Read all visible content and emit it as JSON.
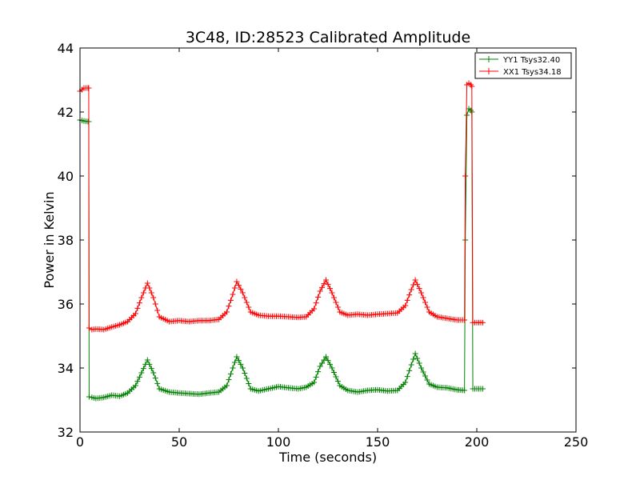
{
  "chart_data": {
    "type": "line",
    "title": "3C48, ID:28523 Calibrated Amplitude",
    "xlabel": "Time (seconds)",
    "ylabel": "Power in Kelvin",
    "xlim": [
      0,
      250
    ],
    "ylim": [
      32,
      44
    ],
    "xticks": [
      "0",
      "50",
      "100",
      "150",
      "200",
      "250"
    ],
    "yticks": [
      "32",
      "34",
      "36",
      "38",
      "40",
      "42",
      "44"
    ],
    "grid": false,
    "legend_position": "top-right",
    "marker": "plus",
    "series": [
      {
        "name": "YY1 Tsys32.40",
        "color": "#008000",
        "points": [
          [
            0,
            41.75
          ],
          [
            2,
            41.72
          ],
          [
            4,
            41.7
          ],
          [
            4.4,
            41.7
          ],
          [
            4.6,
            33.1
          ],
          [
            6,
            33.08
          ],
          [
            8,
            33.05
          ],
          [
            12,
            33.08
          ],
          [
            16,
            33.15
          ],
          [
            20,
            33.12
          ],
          [
            24,
            33.22
          ],
          [
            28,
            33.45
          ],
          [
            31,
            33.85
          ],
          [
            34,
            34.25
          ],
          [
            37,
            33.85
          ],
          [
            40,
            33.35
          ],
          [
            45,
            33.25
          ],
          [
            50,
            33.22
          ],
          [
            55,
            33.2
          ],
          [
            60,
            33.18
          ],
          [
            65,
            33.22
          ],
          [
            70,
            33.25
          ],
          [
            74,
            33.45
          ],
          [
            77,
            34.0
          ],
          [
            79,
            34.35
          ],
          [
            82,
            34.0
          ],
          [
            86,
            33.35
          ],
          [
            90,
            33.28
          ],
          [
            95,
            33.35
          ],
          [
            100,
            33.42
          ],
          [
            105,
            33.38
          ],
          [
            110,
            33.35
          ],
          [
            114,
            33.4
          ],
          [
            118,
            33.55
          ],
          [
            121,
            34.05
          ],
          [
            124,
            34.35
          ],
          [
            127,
            34.0
          ],
          [
            131,
            33.45
          ],
          [
            135,
            33.3
          ],
          [
            140,
            33.25
          ],
          [
            145,
            33.3
          ],
          [
            150,
            33.32
          ],
          [
            155,
            33.28
          ],
          [
            160,
            33.3
          ],
          [
            164,
            33.55
          ],
          [
            167,
            34.1
          ],
          [
            169,
            34.45
          ],
          [
            172,
            34.0
          ],
          [
            176,
            33.5
          ],
          [
            180,
            33.4
          ],
          [
            185,
            33.38
          ],
          [
            190,
            33.32
          ],
          [
            193.8,
            33.3
          ],
          [
            194.2,
            38.0
          ],
          [
            195,
            41.9
          ],
          [
            196,
            42.1
          ],
          [
            197,
            42.05
          ],
          [
            197.5,
            42.0
          ],
          [
            198,
            33.35
          ],
          [
            200,
            33.35
          ],
          [
            203,
            33.35
          ]
        ]
      },
      {
        "name": "XX1 Tsys34.18",
        "color": "#ff0000",
        "points": [
          [
            0,
            42.65
          ],
          [
            2,
            42.75
          ],
          [
            4,
            42.75
          ],
          [
            4.4,
            42.75
          ],
          [
            4.6,
            35.25
          ],
          [
            6,
            35.2
          ],
          [
            8,
            35.22
          ],
          [
            12,
            35.2
          ],
          [
            16,
            35.28
          ],
          [
            20,
            35.35
          ],
          [
            24,
            35.45
          ],
          [
            28,
            35.7
          ],
          [
            31,
            36.2
          ],
          [
            34,
            36.65
          ],
          [
            37,
            36.2
          ],
          [
            40,
            35.6
          ],
          [
            45,
            35.45
          ],
          [
            50,
            35.48
          ],
          [
            55,
            35.45
          ],
          [
            60,
            35.48
          ],
          [
            65,
            35.48
          ],
          [
            70,
            35.52
          ],
          [
            74,
            35.75
          ],
          [
            77,
            36.3
          ],
          [
            79,
            36.7
          ],
          [
            82,
            36.35
          ],
          [
            86,
            35.75
          ],
          [
            90,
            35.65
          ],
          [
            95,
            35.62
          ],
          [
            100,
            35.62
          ],
          [
            105,
            35.6
          ],
          [
            110,
            35.58
          ],
          [
            114,
            35.6
          ],
          [
            118,
            35.85
          ],
          [
            121,
            36.4
          ],
          [
            124,
            36.75
          ],
          [
            127,
            36.35
          ],
          [
            131,
            35.75
          ],
          [
            135,
            35.65
          ],
          [
            140,
            35.68
          ],
          [
            145,
            35.65
          ],
          [
            150,
            35.68
          ],
          [
            155,
            35.7
          ],
          [
            160,
            35.72
          ],
          [
            164,
            35.95
          ],
          [
            167,
            36.45
          ],
          [
            169,
            36.75
          ],
          [
            172,
            36.35
          ],
          [
            176,
            35.75
          ],
          [
            180,
            35.6
          ],
          [
            185,
            35.55
          ],
          [
            190,
            35.5
          ],
          [
            193.8,
            35.5
          ],
          [
            194.2,
            40.0
          ],
          [
            195,
            42.85
          ],
          [
            196,
            42.9
          ],
          [
            197,
            42.85
          ],
          [
            197.5,
            42.8
          ],
          [
            198,
            35.42
          ],
          [
            200,
            35.42
          ],
          [
            203,
            35.42
          ]
        ]
      }
    ]
  }
}
